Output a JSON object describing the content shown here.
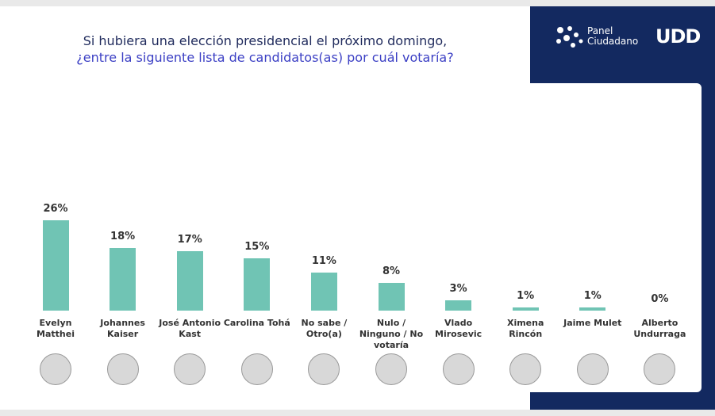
{
  "chart_data": {
    "type": "bar",
    "title": "Si hubiera una elección presidencial el próximo domingo,",
    "subtitle": "¿entre la siguiente lista de candidatos(as) por cuál votaría?",
    "categories": [
      "Evelyn Matthei",
      "Johannes Kaiser",
      "José Antonio Kast",
      "Carolina Tohá",
      "No sabe / Otro(a)",
      "Nulo / Ninguno / No votaría",
      "Vlado Mirosevic",
      "Ximena Rincón",
      "Jaime Mulet",
      "Alberto Undurraga"
    ],
    "values": [
      26,
      18,
      17,
      15,
      11,
      8,
      3,
      1,
      1,
      0
    ],
    "value_labels": [
      "26%",
      "18%",
      "17%",
      "15%",
      "11%",
      "8%",
      "3%",
      "1%",
      "1%",
      "0%"
    ],
    "color": "#70c4b4"
  },
  "logo": {
    "brand_line1": "Panel",
    "brand_line2": "Ciudadano",
    "university": "UDD"
  }
}
